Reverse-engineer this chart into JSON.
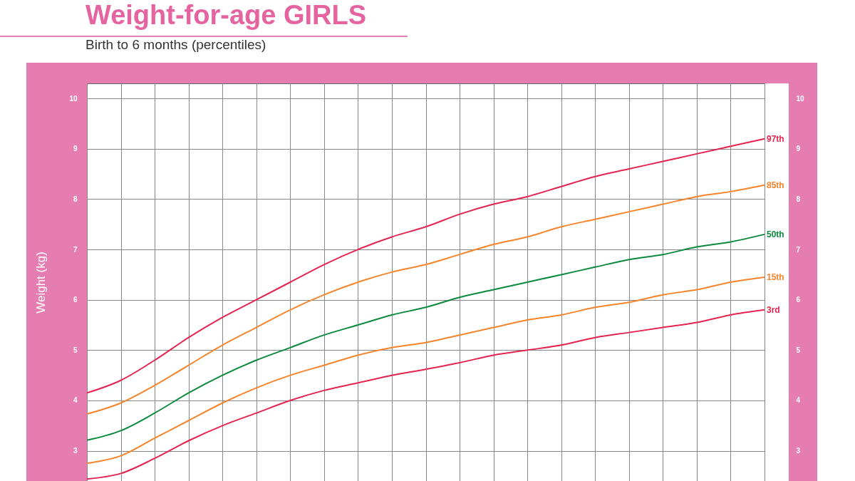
{
  "chart_data": {
    "type": "line",
    "title": "Weight-for-age GIRLS",
    "subtitle": "Birth to 6 months (percentiles)",
    "ylabel": "Weight (kg)",
    "categories": [
      null,
      null,
      null,
      null,
      null,
      null,
      null,
      null,
      null,
      null,
      null,
      null,
      null,
      null,
      null,
      null,
      null,
      null,
      null,
      null,
      null
    ],
    "series": [
      {
        "name": "97th",
        "color": "#e4244f",
        "values": [
          4.15,
          4.4,
          4.8,
          5.25,
          5.65,
          6.0,
          6.35,
          6.7,
          7.0,
          7.25,
          7.45,
          7.7,
          7.9,
          8.05,
          8.25,
          8.45,
          8.6,
          8.75,
          8.9,
          9.05,
          9.2
        ]
      },
      {
        "name": "85th",
        "color": "#f5842a",
        "values": [
          3.73,
          3.95,
          4.3,
          4.7,
          5.1,
          5.45,
          5.8,
          6.1,
          6.35,
          6.55,
          6.7,
          6.9,
          7.1,
          7.25,
          7.45,
          7.6,
          7.75,
          7.9,
          8.05,
          8.15,
          8.28
        ]
      },
      {
        "name": "50th",
        "color": "#0b8a3e",
        "values": [
          3.21,
          3.4,
          3.75,
          4.15,
          4.5,
          4.8,
          5.05,
          5.3,
          5.5,
          5.7,
          5.85,
          6.05,
          6.2,
          6.35,
          6.5,
          6.65,
          6.8,
          6.9,
          7.05,
          7.15,
          7.3
        ]
      },
      {
        "name": "15th",
        "color": "#f5842a",
        "values": [
          2.75,
          2.9,
          3.25,
          3.6,
          3.95,
          4.25,
          4.5,
          4.7,
          4.9,
          5.05,
          5.15,
          5.3,
          5.45,
          5.6,
          5.7,
          5.85,
          5.95,
          6.1,
          6.2,
          6.35,
          6.45
        ]
      },
      {
        "name": "3rd",
        "color": "#e4244f",
        "values": [
          2.44,
          2.55,
          2.85,
          3.2,
          3.5,
          3.75,
          4.0,
          4.2,
          4.35,
          4.5,
          4.62,
          4.75,
          4.9,
          5.0,
          5.1,
          5.25,
          5.35,
          5.45,
          5.55,
          5.7,
          5.8
        ]
      }
    ],
    "ylim": [
      2.4,
      10.3
    ],
    "yticks": [
      3,
      4,
      5,
      6,
      7,
      8,
      9,
      10
    ],
    "y2lim": [
      2.4,
      10.3
    ],
    "y2ticks": [
      3,
      4,
      5,
      6,
      7,
      8,
      9,
      10
    ],
    "grid": true,
    "tick_labels": "y",
    "legend": false
  }
}
